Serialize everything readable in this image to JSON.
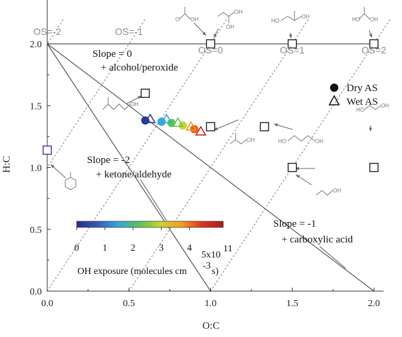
{
  "chart_data": {
    "type": "scatter",
    "xlabel": "O:C",
    "ylabel": "H:C",
    "xlim": [
      0,
      2.0
    ],
    "ylim": [
      0,
      2.2
    ],
    "xticks": [
      "0.0",
      "0.5",
      "1.0",
      "1.5",
      "2.0"
    ],
    "yticks": [
      "0.0",
      "0.5",
      "1.0",
      "1.5",
      "2.0"
    ],
    "grid": false,
    "legend_position": "right",
    "legend": [
      {
        "label": "Dry AS",
        "marker": "filled-circle"
      },
      {
        "label": "Wet AS",
        "marker": "open-triangle"
      }
    ],
    "os_labels": [
      {
        "text": "OS=-2",
        "x": 0.0,
        "y": 2.1
      },
      {
        "text": "OS=-1",
        "x": 0.5,
        "y": 2.1
      },
      {
        "text": "OS=0",
        "x": 1.0,
        "y": 1.95
      },
      {
        "text": "OS=1",
        "x": 1.5,
        "y": 1.95
      },
      {
        "text": "OS=2",
        "x": 2.0,
        "y": 1.95
      }
    ],
    "slope_lines": [
      {
        "from": [
          0,
          2.0
        ],
        "to": [
          2.0,
          2.0
        ],
        "slope": 0
      },
      {
        "from": [
          0,
          2.0
        ],
        "to": [
          1.0,
          0.0
        ],
        "slope": -2
      },
      {
        "from": [
          0,
          2.0
        ],
        "to": [
          2.0,
          0.0
        ],
        "slope": -1
      }
    ],
    "annotations": [
      {
        "line1": "Slope = 0",
        "line2": "+ alcohol/peroxide"
      },
      {
        "line1": "Slope = -2",
        "line2": "+ ketone/aldehyde"
      },
      {
        "line1": "Slope = -1",
        "line2": "+ carboxylic acid"
      }
    ],
    "reference_compounds": [
      {
        "x": 0.0,
        "y": 1.14,
        "color": "#3a3aa0"
      },
      {
        "x": 0.6,
        "y": 1.6,
        "color": "#222222"
      },
      {
        "x": 1.0,
        "y": 2.0,
        "color": "#222222"
      },
      {
        "x": 1.5,
        "y": 2.0,
        "color": "#222222"
      },
      {
        "x": 2.0,
        "y": 2.0,
        "color": "#222222"
      },
      {
        "x": 1.0,
        "y": 1.33,
        "color": "#222222"
      },
      {
        "x": 1.33,
        "y": 1.33,
        "color": "#222222"
      },
      {
        "x": 1.5,
        "y": 1.0,
        "color": "#222222"
      },
      {
        "x": 2.0,
        "y": 1.0,
        "color": "#222222"
      }
    ],
    "series": [
      {
        "name": "Dry AS",
        "marker": "circle",
        "points": [
          {
            "x": 0.6,
            "y": 1.38,
            "color": "#2b3a8f"
          },
          {
            "x": 0.7,
            "y": 1.37,
            "color": "#35a7d9"
          },
          {
            "x": 0.76,
            "y": 1.36,
            "color": "#5cc25a"
          },
          {
            "x": 0.83,
            "y": 1.34,
            "color": "#c8d630"
          },
          {
            "x": 0.9,
            "y": 1.31,
            "color": "#ef5a25"
          }
        ]
      },
      {
        "name": "Wet AS",
        "marker": "triangle",
        "points": [
          {
            "x": 0.63,
            "y": 1.39,
            "color": "#2b3a8f"
          },
          {
            "x": 0.73,
            "y": 1.39,
            "color": "#35a7d9"
          },
          {
            "x": 0.8,
            "y": 1.36,
            "color": "#5cc25a"
          },
          {
            "x": 0.88,
            "y": 1.33,
            "color": "#e8a020"
          },
          {
            "x": 0.94,
            "y": 1.29,
            "color": "#d62020"
          }
        ]
      }
    ],
    "colorbar": {
      "label": "OH exposure (molecules cm",
      "label_sup": "-3",
      "label_tail": " s)",
      "ticks": [
        "0",
        "1",
        "2",
        "3",
        "4"
      ],
      "tick_values": [
        0,
        1,
        2,
        3,
        4
      ],
      "min": 0,
      "max": 5.2,
      "scale": "5x10",
      "scale_sup": "11",
      "colors": [
        "#2a2a7a",
        "#2f5cc0",
        "#35a7d9",
        "#5cc25a",
        "#c8d630",
        "#f0a020",
        "#e03020",
        "#b01818"
      ]
    },
    "molecule_labels": {
      "benzene_label": "",
      "oh": "OH",
      "o": "O",
      "ho": "HO"
    }
  }
}
